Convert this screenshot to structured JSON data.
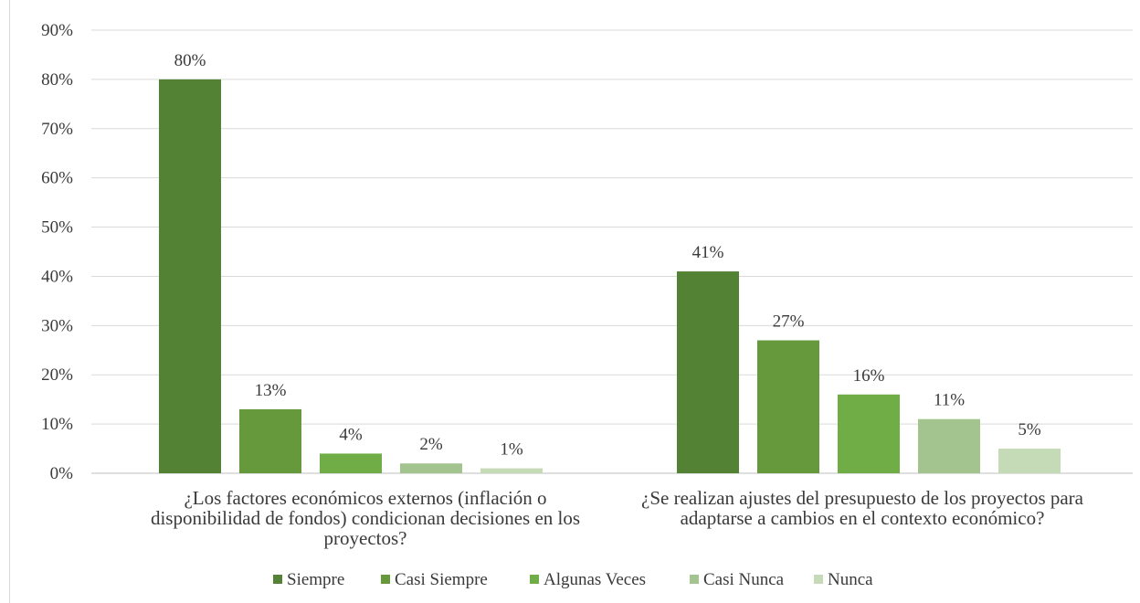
{
  "chart_data": {
    "type": "bar",
    "title": "",
    "xlabel": "",
    "ylabel": "",
    "ylim": [
      0,
      90
    ],
    "y_ticks": [
      0,
      10,
      20,
      30,
      40,
      50,
      60,
      70,
      80,
      90
    ],
    "y_tick_labels": [
      "0%",
      "10%",
      "20%",
      "30%",
      "40%",
      "50%",
      "60%",
      "70%",
      "80%",
      "90%"
    ],
    "grid": true,
    "legend_position": "bottom",
    "categories": [
      {
        "lines": [
          "¿Los factores económicos externos (inflación o",
          "disponibilidad de fondos) condicionan decisiones en los",
          "proyectos?"
        ]
      },
      {
        "lines": [
          "¿Se realizan ajustes del presupuesto de los proyectos para",
          "adaptarse a cambios en el contexto económico?"
        ]
      }
    ],
    "series": [
      {
        "name": "Siempre",
        "color": "#548235",
        "values": [
          80,
          41
        ],
        "labels": [
          "80%",
          "41%"
        ]
      },
      {
        "name": "Casi Siempre",
        "color": "#65993b",
        "values": [
          13,
          27
        ],
        "labels": [
          "13%",
          "27%"
        ]
      },
      {
        "name": "Algunas Veces",
        "color": "#70ad47",
        "values": [
          4,
          16
        ],
        "labels": [
          "4%",
          "16%"
        ]
      },
      {
        "name": "Casi Nunca",
        "color": "#a3c48f",
        "values": [
          2,
          11
        ],
        "labels": [
          "2%",
          "11%"
        ]
      },
      {
        "name": "Nunca",
        "color": "#c5dab6",
        "values": [
          1,
          5
        ],
        "labels": [
          "1%",
          "5%"
        ]
      }
    ]
  }
}
